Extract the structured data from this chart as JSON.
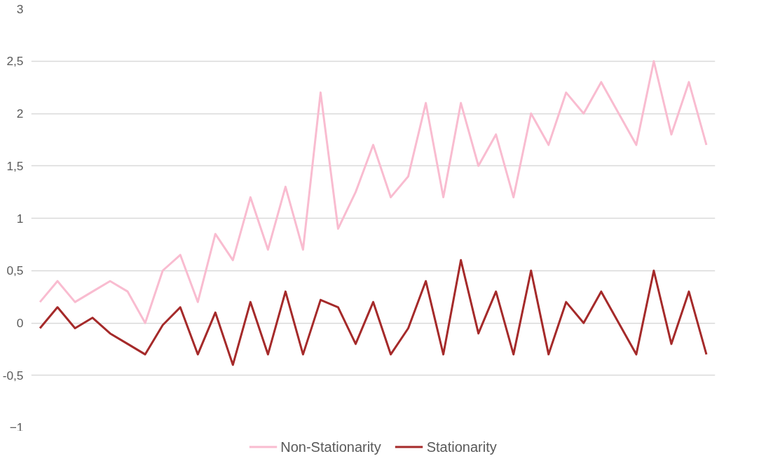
{
  "chart_data": {
    "type": "line",
    "categories": [
      null,
      null,
      null,
      null,
      null,
      null,
      null,
      null,
      null,
      null,
      null,
      null,
      null,
      null,
      null,
      null,
      null,
      null,
      null,
      null,
      null,
      null,
      null,
      null,
      null,
      null,
      null,
      null,
      null,
      null,
      null,
      null,
      null,
      null,
      null,
      null,
      null,
      null,
      null
    ],
    "series": [
      {
        "name": "Non-Stationarity",
        "color": "#f9bcd0",
        "values": [
          0.2,
          0.4,
          0.2,
          0.3,
          0.4,
          0.3,
          0.0,
          0.5,
          0.65,
          0.2,
          0.85,
          0.6,
          1.2,
          0.7,
          1.3,
          0.7,
          2.2,
          0.9,
          1.25,
          1.7,
          1.2,
          1.4,
          2.1,
          1.2,
          2.1,
          1.5,
          1.8,
          1.2,
          2.0,
          1.7,
          2.2,
          2.0,
          2.3,
          2.0,
          1.7,
          2.5,
          1.8,
          2.3,
          1.7
        ]
      },
      {
        "name": "Stationarity",
        "color": "#a52a2a",
        "values": [
          -0.05,
          0.15,
          -0.05,
          0.05,
          -0.1,
          -0.2,
          -0.3,
          -0.02,
          0.15,
          -0.3,
          0.1,
          -0.4,
          0.2,
          -0.3,
          0.3,
          -0.3,
          0.22,
          0.15,
          -0.2,
          0.2,
          -0.3,
          -0.05,
          0.4,
          -0.3,
          0.6,
          -0.1,
          0.3,
          -0.3,
          0.5,
          -0.3,
          0.2,
          0.0,
          0.3,
          0.0,
          -0.3,
          0.5,
          -0.2,
          0.3,
          -0.3
        ]
      }
    ],
    "ylim": [
      -1,
      3
    ],
    "yticks": [
      -1,
      {
        "value": -0.5,
        "label": "-0,5"
      },
      0,
      {
        "value": 0.5,
        "label": "0,5"
      },
      1,
      {
        "value": 1.5,
        "label": "1,5"
      },
      2,
      {
        "value": 2.5,
        "label": "2,5"
      },
      3
    ],
    "tick_labels": "y",
    "grid": "y",
    "legend": "bottom",
    "marker": "none",
    "line_style": "solid"
  }
}
